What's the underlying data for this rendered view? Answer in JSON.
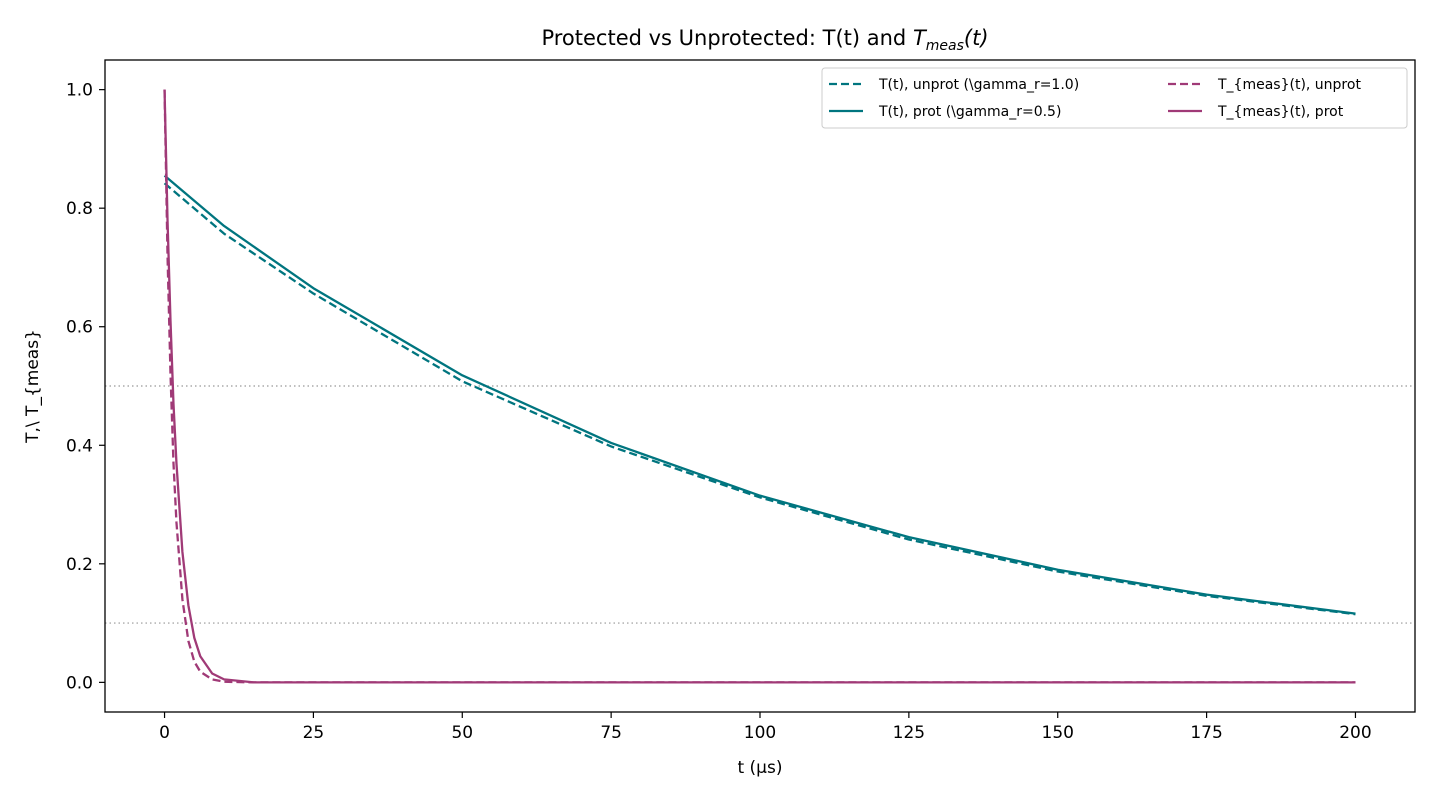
{
  "chart_data": {
    "type": "line",
    "title": "Protected vs Unprotected: T(t) and ",
    "title_math": "T",
    "title_math_sub": "meas",
    "title_math_suffix": "(t)",
    "xlabel": "t (μs)",
    "ylabel": "T,\\ T_{meas}",
    "xlim": [
      -10,
      210
    ],
    "ylim": [
      -0.05,
      1.05
    ],
    "x_ticks": [
      0,
      25,
      50,
      75,
      100,
      125,
      150,
      175,
      200
    ],
    "y_ticks": [
      0.0,
      0.2,
      0.4,
      0.6,
      0.8,
      1.0
    ],
    "y_tick_labels": [
      "0.0",
      "0.2",
      "0.4",
      "0.6",
      "0.8",
      "1.0"
    ],
    "grid": false,
    "reference_lines": [
      0.5,
      0.1
    ],
    "legend_placement": "top-right",
    "series": [
      {
        "name": "T(t), unprot (\\gamma_r=1.0)",
        "color": "#00757f",
        "style": "dashed",
        "x": [
          0,
          10,
          25,
          50,
          75,
          100,
          125,
          150,
          175,
          200
        ],
        "values": [
          0.842,
          0.757,
          0.656,
          0.508,
          0.398,
          0.312,
          0.241,
          0.187,
          0.146,
          0.115
        ]
      },
      {
        "name": "T(t), prot (\\gamma_r=0.5)",
        "color": "#00757f",
        "style": "solid",
        "x": [
          0,
          10,
          25,
          50,
          75,
          100,
          125,
          150,
          175,
          200
        ],
        "values": [
          0.855,
          0.77,
          0.665,
          0.518,
          0.404,
          0.315,
          0.245,
          0.19,
          0.148,
          0.116
        ]
      },
      {
        "name": "T_{meas}(t), unprot",
        "color": "#a03a77",
        "style": "dashed",
        "x": [
          0,
          0.5,
          1,
          1.5,
          2,
          3,
          4,
          5,
          6,
          8,
          10,
          15,
          50,
          100,
          150,
          200
        ],
        "values": [
          1.0,
          0.72,
          0.52,
          0.37,
          0.27,
          0.14,
          0.07,
          0.035,
          0.018,
          0.005,
          0.001,
          0.0,
          0.0,
          0.0,
          0.0,
          0.0
        ]
      },
      {
        "name": "T_{meas}(t), prot",
        "color": "#a03a77",
        "style": "solid",
        "x": [
          0,
          0.5,
          1,
          1.5,
          2,
          3,
          4,
          5,
          6,
          8,
          10,
          15,
          50,
          100,
          150,
          200
        ],
        "values": [
          1.0,
          0.78,
          0.61,
          0.47,
          0.37,
          0.22,
          0.13,
          0.075,
          0.044,
          0.015,
          0.005,
          0.0,
          0.0,
          0.0,
          0.0,
          0.0
        ]
      }
    ]
  }
}
